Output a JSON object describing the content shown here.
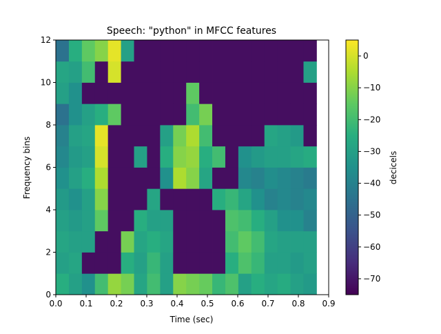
{
  "chart_data": {
    "type": "heatmap",
    "title": "Speech: \"python\" in MFCC features",
    "xlabel": "Time (sec)",
    "ylabel": "Frequency bins",
    "colorbar_label": "decicels",
    "colormap": "viridis",
    "xlim": [
      0.0,
      0.9
    ],
    "ylim": [
      0,
      12
    ],
    "clim": [
      -75,
      5
    ],
    "grid": false,
    "x_ticks": [
      "0.0",
      "0.1",
      "0.2",
      "0.3",
      "0.4",
      "0.5",
      "0.6",
      "0.7",
      "0.8",
      "0.9"
    ],
    "y_ticks": [
      "0",
      "2",
      "4",
      "6",
      "8",
      "10",
      "12"
    ],
    "colorbar_ticks": [
      "0",
      "−10",
      "−20",
      "−30",
      "−40",
      "−50",
      "−60",
      "−70"
    ],
    "colorbar_tick_values": [
      0,
      -10,
      -20,
      -30,
      -40,
      -50,
      -60,
      -70
    ],
    "n_time_frames": 20,
    "time_frame_edges": [
      0.0,
      0.043,
      0.086,
      0.129,
      0.172,
      0.215,
      0.258,
      0.301,
      0.344,
      0.387,
      0.43,
      0.473,
      0.516,
      0.559,
      0.602,
      0.645,
      0.688,
      0.731,
      0.774,
      0.817,
      0.86
    ],
    "frequency_bins": [
      0,
      1,
      2,
      3,
      4,
      5,
      6,
      7,
      8,
      9,
      10,
      11
    ],
    "values": [
      [
        -25,
        -30,
        -35,
        -20,
        -8,
        -12,
        -28,
        -20,
        -30,
        -10,
        -12,
        -14,
        -22,
        -18,
        -30,
        -25,
        -28,
        -26,
        -30,
        -32
      ],
      [
        -30,
        -28,
        -72,
        -72,
        -72,
        -25,
        -30,
        -22,
        -30,
        -72,
        -72,
        -72,
        -72,
        -25,
        -18,
        -22,
        -30,
        -30,
        -32,
        -30
      ],
      [
        -28,
        -30,
        -30,
        -72,
        -72,
        -12,
        -28,
        -25,
        -28,
        -72,
        -72,
        -72,
        -72,
        -20,
        -15,
        -20,
        -28,
        -30,
        -30,
        -30
      ],
      [
        -30,
        -32,
        -30,
        -15,
        -72,
        -72,
        -25,
        -30,
        -30,
        -72,
        -72,
        -72,
        -72,
        -18,
        -20,
        -25,
        -30,
        -35,
        -35,
        -40
      ],
      [
        -32,
        -35,
        -30,
        -10,
        -72,
        -72,
        -72,
        -28,
        -72,
        -72,
        -72,
        -72,
        -25,
        -22,
        -28,
        -35,
        -40,
        -38,
        -40,
        -38
      ],
      [
        -35,
        -30,
        -25,
        -5,
        -72,
        -72,
        -72,
        -72,
        -35,
        -5,
        -10,
        -28,
        -72,
        -72,
        -38,
        -40,
        -36,
        -38,
        -40,
        -42
      ],
      [
        -38,
        -32,
        -30,
        0,
        -72,
        -72,
        -30,
        -72,
        -25,
        -10,
        -8,
        -25,
        -20,
        -72,
        -35,
        -32,
        -30,
        -30,
        -28,
        -26
      ],
      [
        -40,
        -30,
        -28,
        2,
        -72,
        -72,
        -72,
        -72,
        -30,
        -12,
        -5,
        -20,
        -72,
        -72,
        -72,
        -72,
        -28,
        -30,
        -32,
        -72
      ],
      [
        -45,
        -35,
        -30,
        -25,
        -15,
        -72,
        -72,
        -72,
        -72,
        -72,
        -20,
        -12,
        -72,
        -72,
        -72,
        -72,
        -72,
        -72,
        -72,
        -72
      ],
      [
        -30,
        -35,
        -72,
        -72,
        -72,
        -72,
        -72,
        -72,
        -72,
        -72,
        -15,
        -72,
        -72,
        -72,
        -72,
        -72,
        -72,
        -72,
        -72,
        -72
      ],
      [
        -28,
        -30,
        -20,
        -72,
        0,
        -72,
        -72,
        -72,
        -72,
        -72,
        -72,
        -72,
        -72,
        -72,
        -72,
        -72,
        -72,
        -72,
        -72,
        -30
      ],
      [
        -45,
        -25,
        -15,
        -10,
        2,
        -30,
        -72,
        -72,
        -72,
        -72,
        -72,
        -72,
        -72,
        -72,
        -72,
        -72,
        -72,
        -72,
        -72,
        -72
      ]
    ]
  }
}
